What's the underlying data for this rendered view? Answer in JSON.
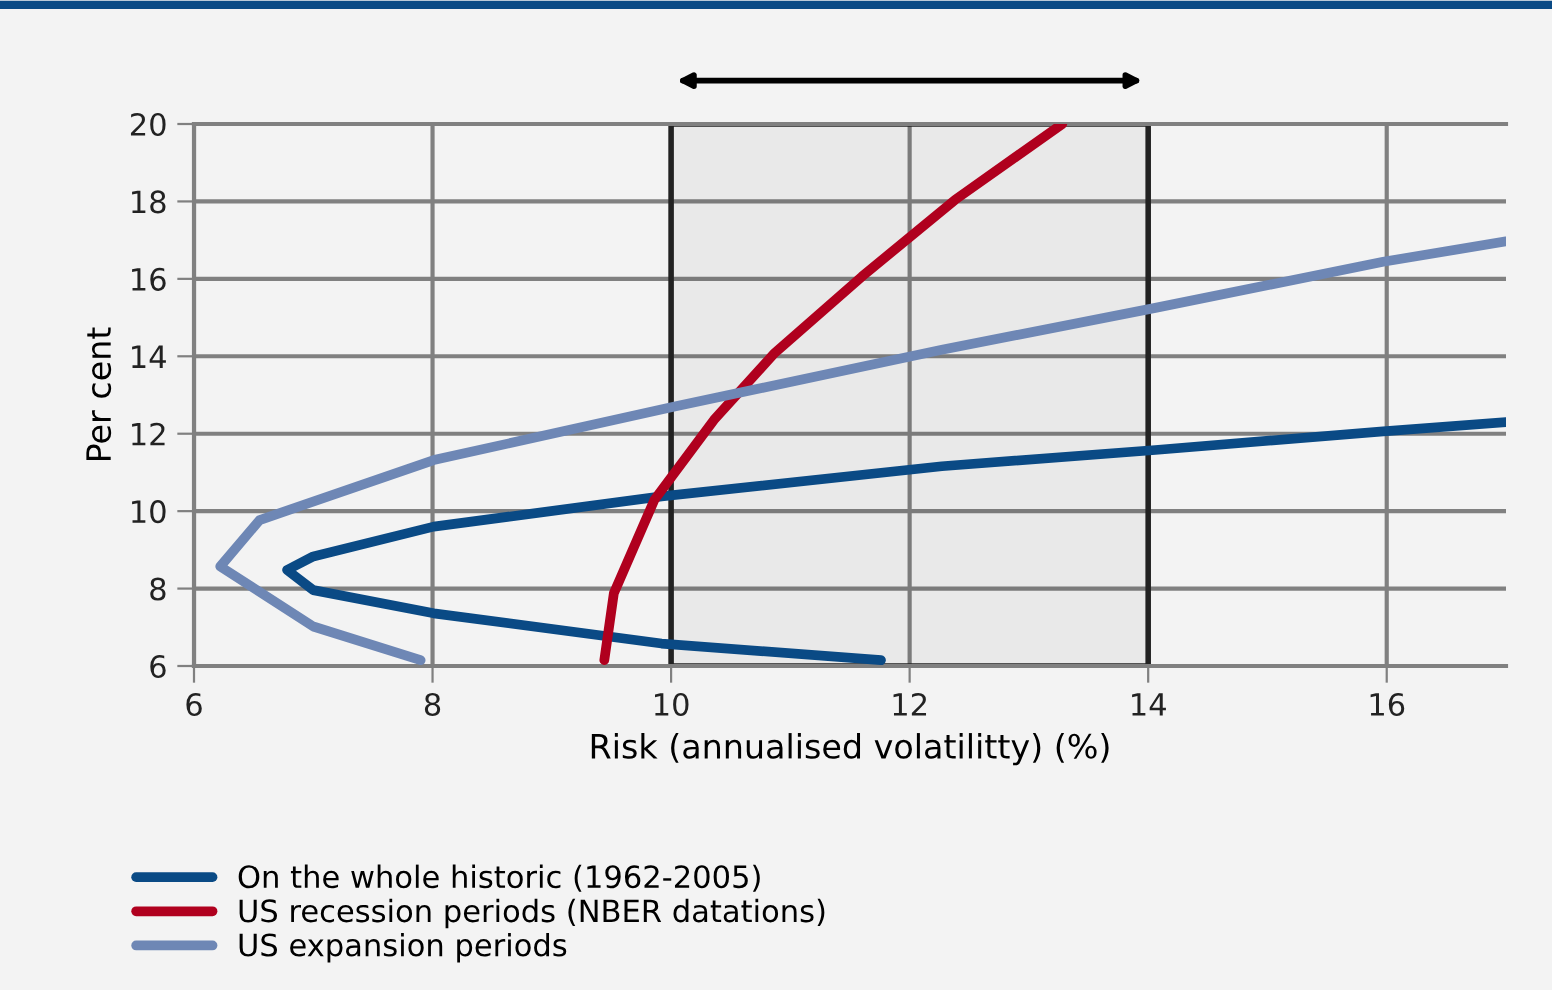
{
  "chart_data": {
    "type": "line",
    "xlabel": "Risk (annualised volatilitty) (%)",
    "ylabel": "Per cent",
    "xlim": [
      6,
      17
    ],
    "xticks": [
      6,
      8,
      10,
      12,
      14,
      16
    ],
    "ylim": [
      6,
      20
    ],
    "yticks": [
      6,
      8,
      10,
      12,
      14,
      16,
      18,
      20
    ],
    "grid": true,
    "legend": "bottom",
    "marker": "none",
    "line_style": "solid",
    "bands": [
      {
        "axis": "x",
        "from": 10,
        "to": 14,
        "color": "#222222"
      }
    ],
    "series": [
      {
        "name": "On the whole historic (1962-2005)",
        "color": "#0a4a85",
        "x": [
          11.76,
          9.92,
          8.01,
          7.0,
          6.78,
          7.0,
          8.01,
          9.92,
          12.27,
          14.06,
          15.97,
          17.0
        ],
        "values": [
          6.15,
          6.58,
          7.36,
          7.96,
          8.48,
          8.83,
          9.6,
          10.38,
          11.16,
          11.58,
          12.06,
          12.3
        ]
      },
      {
        "name": "US recession periods (NBER datations)",
        "color": "#b0001e",
        "x": [
          9.44,
          9.52,
          9.86,
          10.36,
          10.87,
          11.6,
          12.38,
          13.28
        ],
        "values": [
          6.15,
          7.88,
          10.29,
          12.36,
          14.09,
          16.06,
          18.04,
          20.0
        ]
      },
      {
        "name": "US expansion periods",
        "color": "#6e87b5",
        "x": [
          7.9,
          7.0,
          6.22,
          6.55,
          8.01,
          10.03,
          12.27,
          14.06,
          15.97,
          17.0
        ],
        "values": [
          6.15,
          7.02,
          8.57,
          9.77,
          11.32,
          12.7,
          14.17,
          15.25,
          16.44,
          16.97
        ]
      }
    ]
  }
}
